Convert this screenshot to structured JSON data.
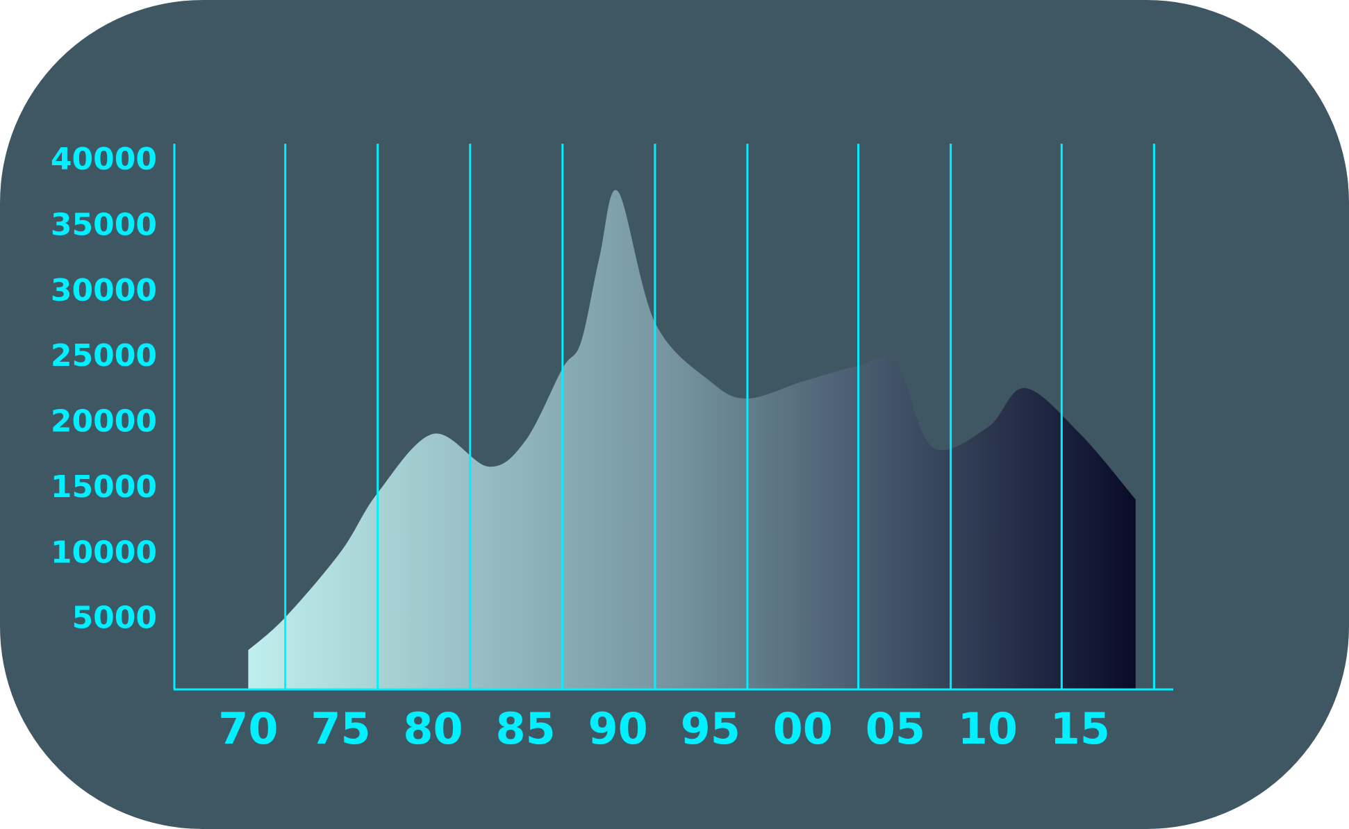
{
  "chart_data": {
    "type": "area",
    "title": "",
    "xlabel": "",
    "ylabel": "",
    "x": [
      1970,
      1972,
      1975,
      1977,
      1980,
      1983,
      1985,
      1987,
      1988,
      1989,
      1990,
      1992,
      1995,
      1997,
      2000,
      2003,
      2005,
      2007,
      2010,
      2012,
      2015,
      2018
    ],
    "values": [
      3000,
      5500,
      10500,
      15000,
      19500,
      17000,
      19000,
      24500,
      26500,
      33000,
      38000,
      28000,
      23500,
      22200,
      23500,
      24700,
      25000,
      18500,
      20000,
      23000,
      19500,
      14500
    ],
    "ylim": [
      0,
      40000
    ],
    "xlim": [
      1966,
      2020
    ],
    "y_ticks": [
      "5000",
      "10000",
      "15000",
      "20000",
      "25000",
      "30000",
      "35000",
      "40000"
    ],
    "y_tick_values": [
      5000,
      10000,
      15000,
      20000,
      25000,
      30000,
      35000,
      40000
    ],
    "x_tick_labels": [
      "70",
      "75",
      "80",
      "85",
      "90",
      "95",
      "00",
      "05",
      "10",
      "15"
    ],
    "x_tick_values": [
      1970,
      1975,
      1980,
      1985,
      1990,
      1995,
      2000,
      2005,
      2010,
      2015
    ],
    "vertical_lines_at": [
      1966,
      1972,
      1977,
      1982,
      1987,
      1992,
      1997,
      2003,
      2008,
      2014,
      2019
    ],
    "grid": "vertical",
    "colors": {
      "background": "#3f5763",
      "accent": "#00f0ff",
      "fill_start": "#ccfffb",
      "fill_mid": "#7594a0",
      "fill_end": "#00001e"
    }
  }
}
